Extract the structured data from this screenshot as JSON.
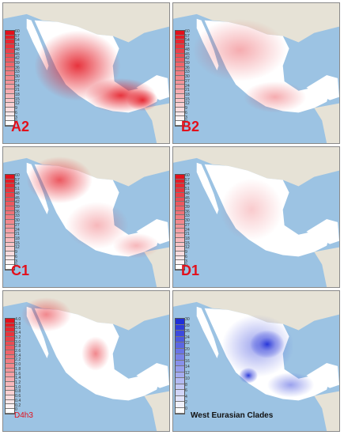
{
  "colors": {
    "sea": "#9cc3e3",
    "land": "#e6e2d6",
    "red": "#e3101b",
    "blue": "#1f2fd8"
  },
  "panels": [
    {
      "id": "a2",
      "label": "A2",
      "label_style": "large",
      "scale": [
        "60",
        "57",
        "54",
        "51",
        "48",
        "45",
        "42",
        "39",
        "36",
        "33",
        "30",
        "27",
        "24",
        "21",
        "18",
        "15",
        "12",
        "9",
        "6",
        "3",
        "0"
      ],
      "color": "red",
      "intensity": 1.0
    },
    {
      "id": "b2",
      "label": "B2",
      "label_style": "large",
      "scale": [
        "60",
        "57",
        "54",
        "51",
        "48",
        "45",
        "42",
        "39",
        "36",
        "33",
        "30",
        "27",
        "24",
        "21",
        "18",
        "15",
        "12",
        "9",
        "6",
        "3",
        "0"
      ],
      "color": "red",
      "intensity": 0.45
    },
    {
      "id": "c1",
      "label": "C1",
      "label_style": "large",
      "scale": [
        "60",
        "57",
        "54",
        "51",
        "48",
        "45",
        "42",
        "39",
        "36",
        "33",
        "30",
        "27",
        "24",
        "21",
        "18",
        "15",
        "12",
        "9",
        "6",
        "3",
        "0"
      ],
      "color": "red",
      "intensity": 0.6
    },
    {
      "id": "d1",
      "label": "D1",
      "label_style": "large",
      "scale": [
        "60",
        "57",
        "54",
        "51",
        "48",
        "45",
        "42",
        "39",
        "36",
        "33",
        "30",
        "27",
        "24",
        "21",
        "18",
        "15",
        "12",
        "9",
        "6",
        "3",
        "0"
      ],
      "color": "red",
      "intensity": 0.25
    },
    {
      "id": "d4h3",
      "label": "D4h3",
      "label_style": "small",
      "scale": [
        "4.0",
        "3.8",
        "3.6",
        "3.4",
        "3.2",
        "3.0",
        "2.8",
        "2.6",
        "2.4",
        "2.2",
        "2.0",
        "1.8",
        "1.6",
        "1.4",
        "1.2",
        "1.0",
        "0.8",
        "0.6",
        "0.4",
        "0.2",
        "0"
      ],
      "color": "red",
      "intensity": 0.5
    },
    {
      "id": "west-eurasian",
      "label": "West Eurasian Clades",
      "label_style": "dark",
      "scale": [
        "30",
        "28",
        "26",
        "24",
        "22",
        "20",
        "18",
        "16",
        "14",
        "12",
        "10",
        "8",
        "6",
        "4",
        "2",
        "0"
      ],
      "color": "blue",
      "intensity": 1.0
    }
  ]
}
